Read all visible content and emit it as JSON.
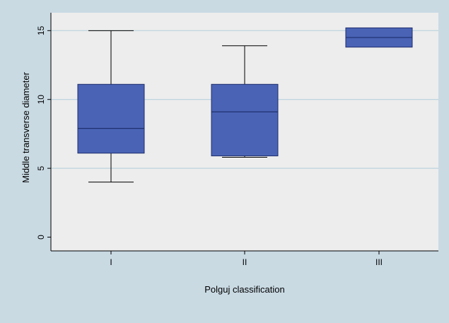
{
  "chart_data": {
    "type": "boxplot",
    "xlabel": "Polguj classification",
    "ylabel": "Middle transverse diameter",
    "ylim": [
      -1,
      16.3
    ],
    "yticks": [
      0,
      5,
      10,
      15
    ],
    "grid": true,
    "categories": [
      "I",
      "II",
      "III"
    ],
    "boxes": [
      {
        "category": "I",
        "min": 4.0,
        "q1": 6.1,
        "median": 7.9,
        "q3": 11.1,
        "max": 15.0
      },
      {
        "category": "II",
        "min": 5.8,
        "q1": 5.9,
        "median": 9.1,
        "q3": 11.1,
        "max": 13.9
      },
      {
        "category": "III",
        "min": 13.8,
        "q1": 13.8,
        "median": 14.5,
        "q3": 15.2,
        "max": 15.2
      }
    ],
    "colors": {
      "outer_background": "#c9dae3",
      "plot_background": "#ededed",
      "box_fill": "#4a63b5",
      "box_stroke": "#1f2f6e",
      "gridline": "#bcd2dd",
      "axis": "#000000"
    }
  }
}
